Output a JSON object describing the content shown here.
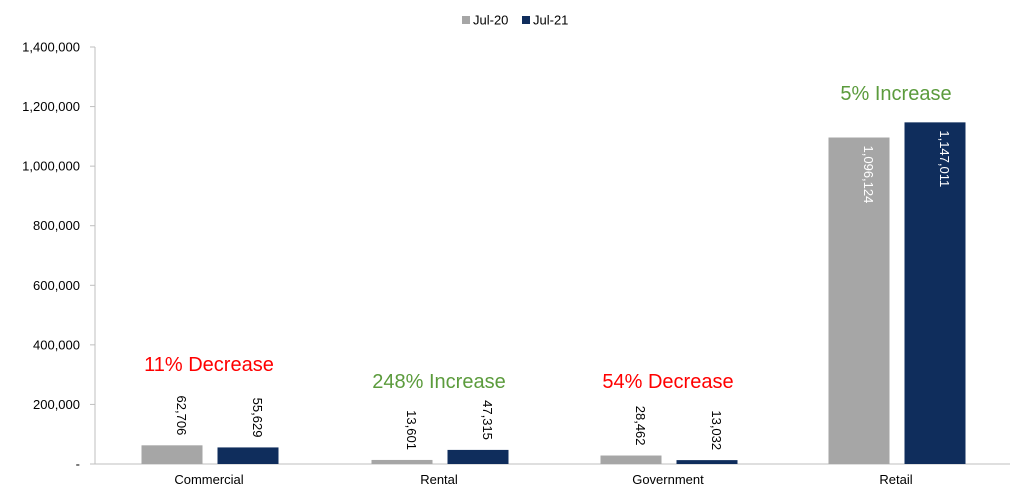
{
  "chart_data": {
    "type": "bar",
    "categories": [
      "Commercial",
      "Rental",
      "Government",
      "Retail"
    ],
    "series": [
      {
        "name": "Jul-20",
        "color": "#A6A6A6",
        "values": [
          62706,
          13601,
          28462,
          1096124
        ],
        "labels": [
          "62,706",
          "13,601",
          "28,462",
          "1,096,124"
        ]
      },
      {
        "name": "Jul-21",
        "color": "#0F2D5C",
        "values": [
          55629,
          47315,
          13032,
          1147011
        ],
        "labels": [
          "55,629",
          "47,315",
          "13,032",
          "1,147,011"
        ]
      }
    ],
    "ylim": [
      0,
      1400000
    ],
    "yticks": [
      0,
      200000,
      400000,
      600000,
      800000,
      1000000,
      1200000,
      1400000
    ],
    "ytick_labels": [
      "-",
      "200,000",
      "400,000",
      "600,000",
      "800,000",
      "1,000,000",
      "1,200,000",
      "1,400,000"
    ],
    "annotations": [
      {
        "category": "Commercial",
        "text": "11% Decrease",
        "color": "#FF0000"
      },
      {
        "category": "Rental",
        "text": "248% Increase",
        "color": "#5B9B3C"
      },
      {
        "category": "Government",
        "text": "54% Decrease",
        "color": "#FF0000"
      },
      {
        "category": "Retail",
        "text": "5% Increase",
        "color": "#5B9B3C"
      }
    ],
    "legend_position": "top-center",
    "grid": false
  }
}
